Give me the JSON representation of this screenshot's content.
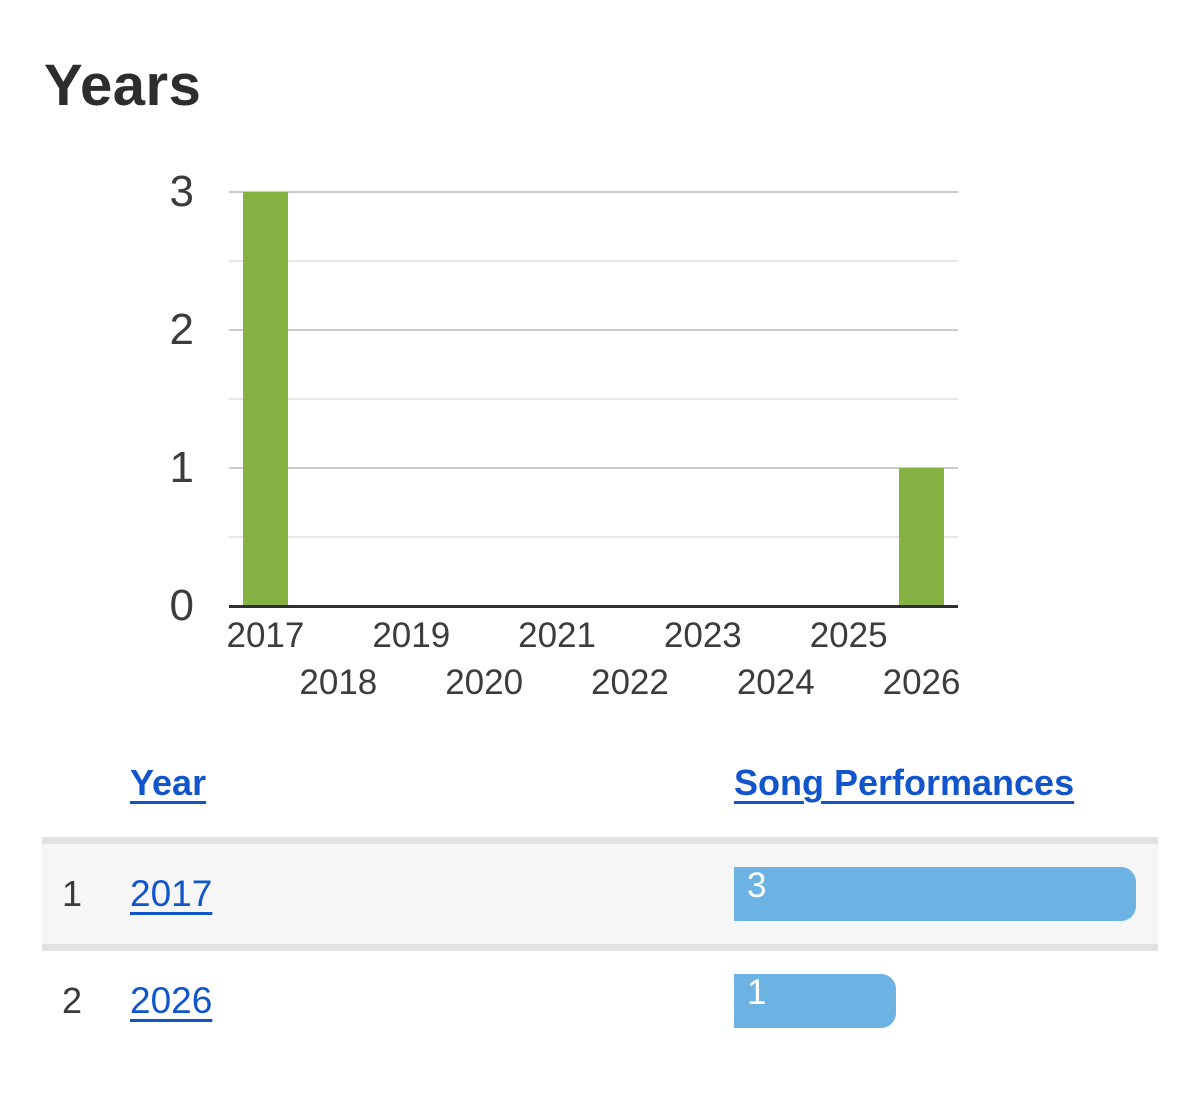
{
  "title": "Years",
  "chart_data": {
    "type": "bar",
    "title": "Years",
    "categories": [
      "2017",
      "2018",
      "2019",
      "2020",
      "2021",
      "2022",
      "2023",
      "2024",
      "2025",
      "2026"
    ],
    "values": [
      3,
      0,
      0,
      0,
      0,
      0,
      0,
      0,
      0,
      1
    ],
    "xlabel": "",
    "ylabel": "",
    "yticks": [
      0,
      1,
      2,
      3
    ],
    "ylim": [
      0,
      3
    ],
    "grid": true,
    "legend_position": "none",
    "bar_color": "#85b243",
    "major_grid_color": "#cccccc",
    "minor_grid_color": "#e8e8e8",
    "baseline_color": "#2f2f2f",
    "tick_label_color": "#3c3c3c"
  },
  "table": {
    "columns": [
      {
        "label": "Year"
      },
      {
        "label": "Song Performances"
      }
    ],
    "rows": [
      {
        "index": "1",
        "year": "2017",
        "value": 3,
        "value_label": "3"
      },
      {
        "index": "2",
        "year": "2026",
        "value": 1,
        "value_label": "1"
      }
    ],
    "link_color": "#1155cc",
    "bar_color": "#6cb2e2",
    "row_alt_background": "#f6f6f6",
    "row_border_color": "#e2e2e2"
  }
}
